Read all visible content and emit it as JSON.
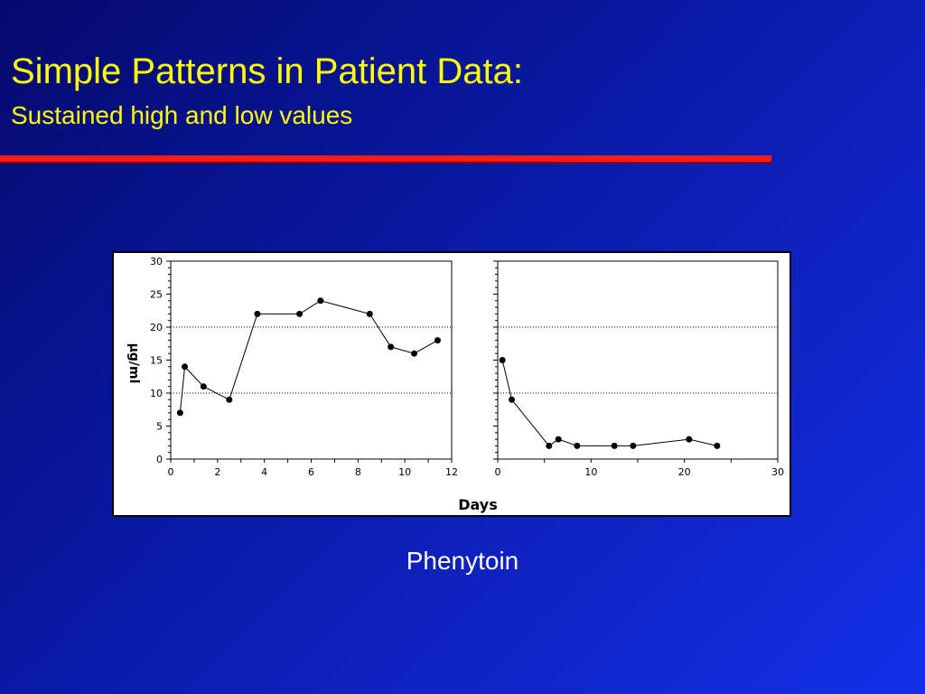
{
  "slide": {
    "title": "Simple Patterns in Patient Data:",
    "subtitle": "Sustained high and low values",
    "caption": "Phenytoin"
  },
  "colors": {
    "title": "#ffff00",
    "rule": "#ff1a1a",
    "caption": "#ffffff",
    "background": "#0a1aa8"
  },
  "chart_data": [
    {
      "type": "line",
      "ylabel": "µg/ml",
      "xlabel": "",
      "xlim": [
        0,
        12
      ],
      "ylim": [
        0,
        30
      ],
      "xticks": [
        0,
        2,
        4,
        6,
        8,
        10,
        12
      ],
      "yticks": [
        0,
        5,
        10,
        15,
        20,
        25,
        30
      ],
      "reference_lines": [
        10,
        20
      ],
      "grid": false,
      "series": [
        {
          "x": [
            0.4,
            0.6,
            1.4,
            2.5,
            3.7,
            5.5,
            6.4,
            8.5,
            9.4,
            10.4,
            11.4
          ],
          "values": [
            7,
            14,
            11,
            9,
            22,
            22,
            24,
            22,
            17,
            16,
            18
          ]
        }
      ]
    },
    {
      "type": "line",
      "ylabel": "",
      "xlabel": "",
      "xlim": [
        0,
        30
      ],
      "ylim": [
        0,
        30
      ],
      "xticks": [
        0,
        10,
        20,
        30
      ],
      "yticks": [],
      "reference_lines": [
        10,
        20
      ],
      "grid": false,
      "series": [
        {
          "x": [
            0.5,
            1.5,
            5.5,
            6.5,
            8.5,
            12.5,
            14.5,
            20.5,
            23.5
          ],
          "values": [
            15,
            9,
            2,
            3,
            2,
            2,
            2,
            3,
            2
          ]
        }
      ]
    }
  ],
  "shared_xlabel": "Days"
}
